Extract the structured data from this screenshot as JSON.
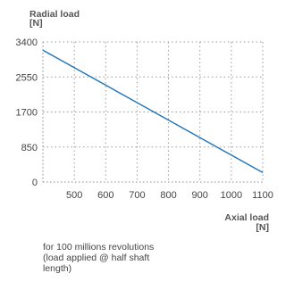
{
  "chart_data": {
    "type": "line",
    "ylabel_line1": "Radial load",
    "ylabel_line2": "[N]",
    "xlabel_line1": "Axial load",
    "xlabel_line2": "[N]",
    "xlim": [
      400,
      1100
    ],
    "ylim": [
      0,
      3400
    ],
    "x_ticks": [
      500,
      600,
      700,
      800,
      900,
      1000,
      1100
    ],
    "y_ticks": [
      3400,
      2550,
      1700,
      850,
      0
    ],
    "x_tick_labels": [
      "500",
      "600",
      "700",
      "800",
      "900",
      "1000",
      "1100"
    ],
    "y_tick_labels": [
      "3400",
      "2550",
      "1700",
      "850",
      "0"
    ],
    "grid": true,
    "series": [
      {
        "x": [
          400,
          1100
        ],
        "y": [
          3200,
          230
        ],
        "color": "#1f74b8"
      }
    ]
  },
  "note": {
    "line1": "for 100 millions revolutions",
    "line2": "(load applied @ half shaft",
    "line3": "length)"
  }
}
